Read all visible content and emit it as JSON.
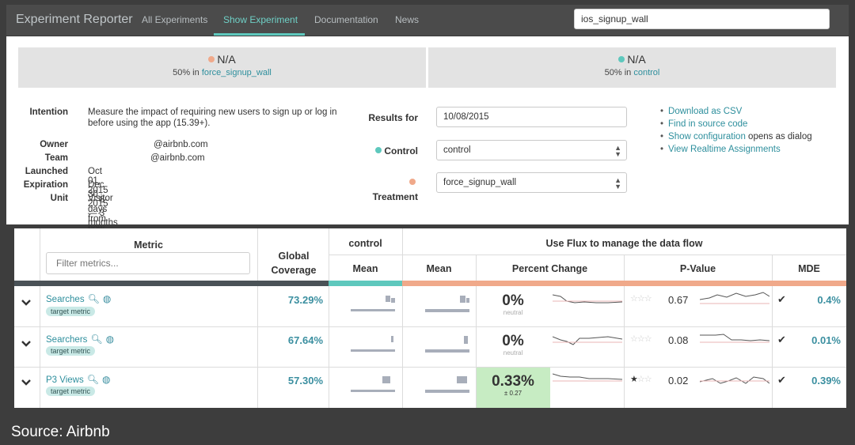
{
  "nav": {
    "brand": "Experiment Reporter",
    "tabs": [
      "All Experiments",
      "Show Experiment",
      "Documentation",
      "News"
    ],
    "search_value": "ios_signup_wall"
  },
  "variants": [
    {
      "name": "N/A",
      "share": "50% in",
      "group": "force_signup_wall",
      "color": "#f0a98a"
    },
    {
      "name": "N/A",
      "share": "50% in",
      "group": "control",
      "color": "#5ec8bd"
    }
  ],
  "details": {
    "intention_label": "Intention",
    "intention_line1": "Measure the impact of requiring new users to sign up or log in",
    "intention_line2": "before using the app (15.39+).",
    "owner_label": "Owner",
    "owner_value": "@airbnb.com",
    "team_label": "Team",
    "team_value": "@airbnb.com",
    "launched_label": "Launched",
    "launched_value": "Oct 01, 2015 — 8 days from now",
    "expiration_label": "Expiration",
    "expiration_value": "Dec 30, 2015 — 3 months from now",
    "unit_label": "Unit",
    "unit_value": "Visitor"
  },
  "form": {
    "results_label": "Results for",
    "results_value": "10/08/2015",
    "control_label": "Control",
    "control_value": "control",
    "treatment_label": "Treatment",
    "treatment_value": "force_signup_wall"
  },
  "links": {
    "csv": "Download as CSV",
    "source": "Find in source code",
    "config": "Show configuration",
    "config_suffix": "opens as dialog",
    "realtime": "View Realtime Assignments"
  },
  "table": {
    "metric_header": "Metric",
    "filter_placeholder": "Filter metrics...",
    "coverage_header": "Global Coverage",
    "control_header": "control",
    "flux_header": "Use Flux to manage the data flow",
    "mean_header": "Mean",
    "treat_mean_header": "Mean",
    "pct_header": "Percent Change",
    "pval_header": "P-Value",
    "mde_header": "MDE",
    "rows": [
      {
        "name": "Searches",
        "tag": "target metric",
        "coverage": "73.29%",
        "pct": "0%",
        "pct_sub": "neutral",
        "stars": 0,
        "pval": "0.67",
        "mde": "0.4%"
      },
      {
        "name": "Searchers",
        "tag": "target metric",
        "coverage": "67.64%",
        "pct": "0%",
        "pct_sub": "neutral",
        "stars": 0,
        "pval": "0.08",
        "mde": "0.01%"
      },
      {
        "name": "P3 Views",
        "tag": "target metric",
        "coverage": "57.30%",
        "pct": "0.33%",
        "pct_sub": "± 0.27",
        "stars": 1,
        "pval": "0.02",
        "mde": "0.39%"
      }
    ]
  },
  "colors": {
    "accent": "#5ec8bd",
    "treatment": "#f0a98a",
    "positive_bg": "#c7ecc3"
  },
  "caption": "Source: Airbnb"
}
